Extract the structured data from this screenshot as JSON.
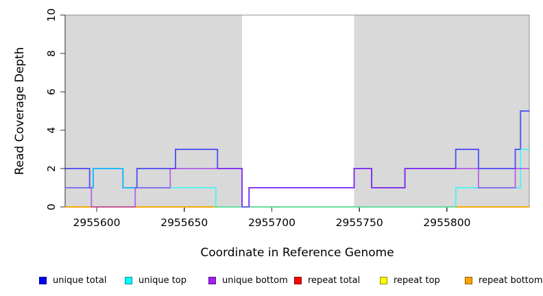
{
  "chart_data": {
    "type": "line",
    "subtype": "step",
    "title": "",
    "xlabel": "Coordinate in Reference Genome",
    "ylabel": "Read Coverage Depth",
    "xlim": [
      2955582,
      2955847
    ],
    "ylim": [
      0,
      10
    ],
    "x_ticks": [
      2955600,
      2955650,
      2955700,
      2955750,
      2955800
    ],
    "y_ticks": [
      0,
      2,
      4,
      6,
      8,
      10
    ],
    "grid": false,
    "plot_bg": "#ffffff",
    "band_color": "#d9d9d9",
    "background_bands": [
      [
        2955582,
        2955683
      ],
      [
        2955747,
        2955847
      ]
    ],
    "line_alpha": 0.6,
    "line_width": 2,
    "series": [
      {
        "name": "repeat total",
        "color": "#FF0000",
        "points": [
          [
            2955582,
            0
          ]
        ]
      },
      {
        "name": "repeat top",
        "color": "#FFFF00",
        "points": [
          [
            2955582,
            0
          ]
        ]
      },
      {
        "name": "repeat bottom",
        "color": "#FFA500",
        "points": [
          [
            2955582,
            0
          ]
        ]
      },
      {
        "name": "unique total",
        "color": "#0000FF",
        "points": [
          [
            2955582,
            2
          ],
          [
            2955596,
            1
          ],
          [
            2955598,
            2
          ],
          [
            2955615,
            1
          ],
          [
            2955623,
            2
          ],
          [
            2955645,
            3
          ],
          [
            2955669,
            2
          ],
          [
            2955683,
            0
          ],
          [
            2955687,
            1
          ],
          [
            2955747,
            2
          ],
          [
            2955757,
            1
          ],
          [
            2955776,
            2
          ],
          [
            2955805,
            3
          ],
          [
            2955818,
            2
          ],
          [
            2955839,
            3
          ],
          [
            2955842,
            5
          ]
        ]
      },
      {
        "name": "unique top",
        "color": "#00FFFF",
        "points": [
          [
            2955582,
            1
          ],
          [
            2955598,
            2
          ],
          [
            2955615,
            1
          ],
          [
            2955668,
            0
          ],
          [
            2955805,
            1
          ],
          [
            2955842,
            3
          ]
        ]
      },
      {
        "name": "unique bottom",
        "color": "#A020F0",
        "points": [
          [
            2955582,
            1
          ],
          [
            2955597,
            0
          ],
          [
            2955622,
            1
          ],
          [
            2955642,
            2
          ],
          [
            2955683,
            0
          ],
          [
            2955687,
            1
          ],
          [
            2955747,
            2
          ],
          [
            2955757,
            1
          ],
          [
            2955776,
            2
          ],
          [
            2955818,
            1
          ],
          [
            2955839,
            2
          ]
        ]
      }
    ],
    "legend_position": "bottom"
  },
  "legend": {
    "items": [
      {
        "label": "unique total",
        "color": "#0000FF"
      },
      {
        "label": "unique top",
        "color": "#00FFFF"
      },
      {
        "label": "unique bottom",
        "color": "#A020F0"
      },
      {
        "label": "repeat total",
        "color": "#FF0000"
      },
      {
        "label": "repeat top",
        "color": "#FFFF00"
      },
      {
        "label": "repeat bottom",
        "color": "#FFA500"
      }
    ]
  }
}
